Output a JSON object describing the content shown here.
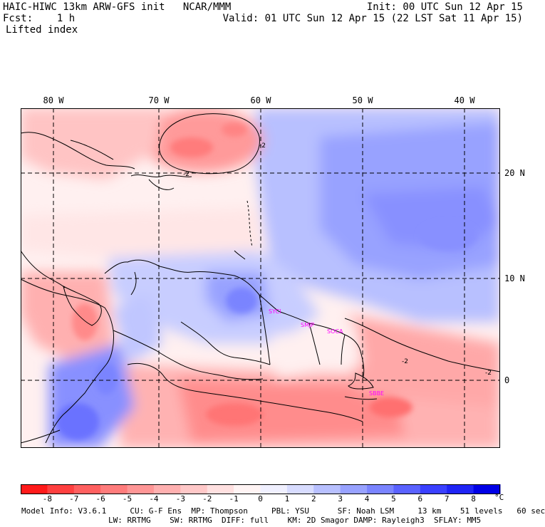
{
  "header": {
    "title": "HAIC-HIWC 13km ARW-GFS init   NCAR/MMM",
    "forecast": "Fcst:    1 h",
    "field": "Lifted index",
    "init": "Init: 00 UTC Sun 12 Apr 15",
    "valid": "Valid: 01 UTC Sun 12 Apr 15 (22 LST Sat 11 Apr 15)"
  },
  "axes": {
    "lon_labels": [
      "80 W",
      "70 W",
      "60 W",
      "50 W",
      "40 W"
    ],
    "lat_labels": [
      "20 N",
      "10 N",
      "0"
    ]
  },
  "country_labels": [
    "SYCI",
    "SMJP",
    "SOCA",
    "SBBE"
  ],
  "contour_labels": [
    "-2",
    "-2",
    "-2",
    "-2"
  ],
  "colorbar": {
    "ticks": [
      "-8",
      "-7",
      "-6",
      "-5",
      "-4",
      "-3",
      "-2",
      "-1",
      "0",
      "1",
      "2",
      "3",
      "4",
      "5",
      "6",
      "7",
      "8"
    ],
    "unit": "°C",
    "colors": [
      "#ff1a1a",
      "#ff4040",
      "#ff6060",
      "#ff7c7c",
      "#ff9696",
      "#ffb0b0",
      "#ffc8c8",
      "#ffe0e0",
      "#fff4f4",
      "#f0f0ff",
      "#d8dcff",
      "#b8c0ff",
      "#98a2ff",
      "#7a84ff",
      "#5a62ff",
      "#3a40ff",
      "#1f24f5",
      "#0000e6"
    ]
  },
  "info": {
    "line1": "Model Info: V3.6.1     CU: G-F Ens  MP: Thompson     PBL: YSU      SF: Noah LSM     13 km    51 levels   60 sec",
    "line2": "LW: RRTMG    SW: RRTMG  DIFF: full    KM: 2D Smagor DAMP: Rayleigh3  SFLAY: MM5"
  }
}
